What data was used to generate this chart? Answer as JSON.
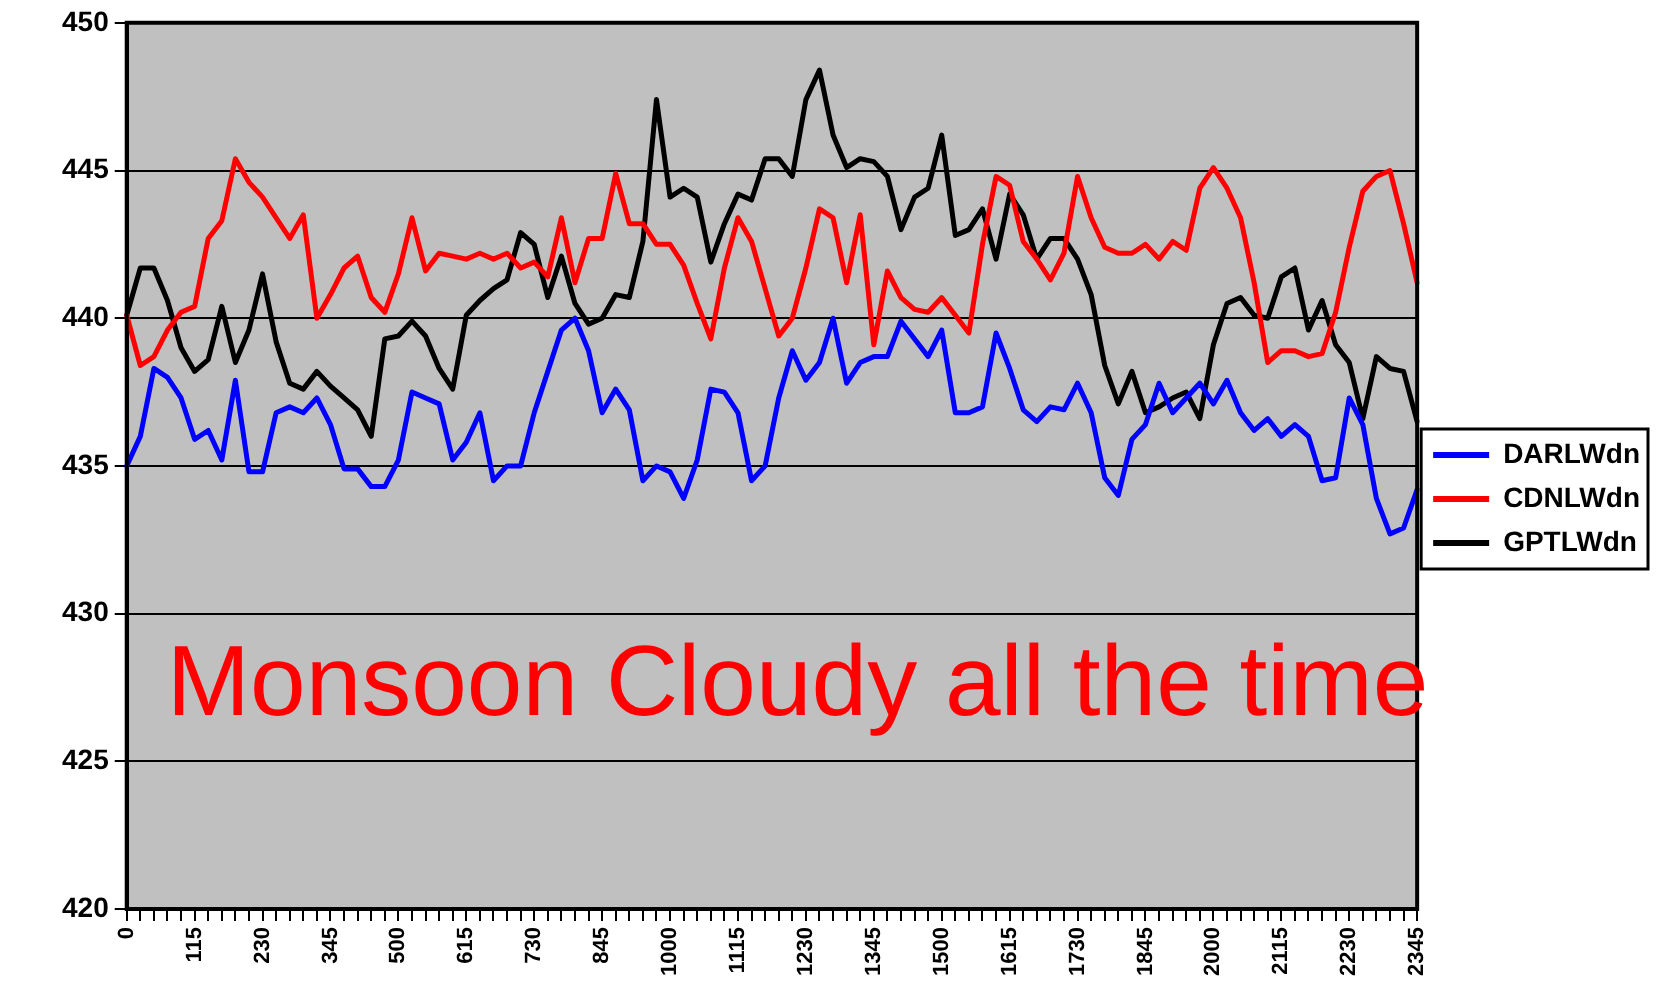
{
  "chart_data": {
    "type": "line",
    "categories": [
      "0",
      null,
      null,
      null,
      null,
      "115",
      null,
      null,
      null,
      null,
      "230",
      null,
      null,
      null,
      null,
      "345",
      null,
      null,
      null,
      null,
      "500",
      null,
      null,
      null,
      null,
      "615",
      null,
      null,
      null,
      null,
      "730",
      null,
      null,
      null,
      null,
      "845",
      null,
      null,
      null,
      null,
      "1000",
      null,
      null,
      null,
      null,
      "1115",
      null,
      null,
      null,
      null,
      "1230",
      null,
      null,
      null,
      null,
      "1345",
      null,
      null,
      null,
      null,
      "1500",
      null,
      null,
      null,
      null,
      "1615",
      null,
      null,
      null,
      null,
      "1730",
      null,
      null,
      null,
      null,
      "1845",
      null,
      null,
      null,
      null,
      "2000",
      null,
      null,
      null,
      null,
      "2115",
      null,
      null,
      null,
      null,
      "2230",
      null,
      null,
      null,
      null,
      "2345"
    ],
    "series": [
      {
        "name": "DARLWdn",
        "color": "#0000ff",
        "values": [
          435.0,
          436.0,
          438.3,
          438.0,
          437.3,
          435.9,
          436.2,
          435.2,
          437.9,
          434.8,
          434.8,
          436.8,
          437.0,
          436.8,
          437.3,
          436.4,
          434.9,
          434.9,
          434.3,
          434.3,
          435.2,
          437.5,
          437.3,
          437.1,
          435.2,
          435.8,
          436.8,
          434.5,
          435.0,
          435.0,
          436.8,
          438.2,
          439.6,
          440.0,
          438.9,
          436.8,
          437.6,
          436.9,
          434.5,
          435.0,
          434.8,
          433.9,
          435.2,
          437.6,
          437.5,
          436.8,
          434.5,
          435.0,
          437.3,
          438.9,
          437.9,
          438.5,
          440.0,
          437.8,
          438.5,
          438.7,
          438.7,
          439.9,
          439.3,
          438.7,
          439.6,
          436.8,
          436.8,
          437.0,
          439.5,
          438.3,
          436.9,
          436.5,
          437.0,
          436.9,
          437.8,
          436.8,
          434.6,
          434.0,
          435.9,
          436.4,
          437.8,
          436.8,
          437.3,
          437.8,
          437.1,
          437.9,
          436.8,
          436.2,
          436.6,
          436.0,
          436.4,
          436.0,
          434.5,
          434.6,
          437.3,
          436.4,
          433.9,
          432.7,
          432.9,
          434.2
        ]
      },
      {
        "name": "CDNLWdn",
        "color": "#ff0000",
        "values": [
          440.1,
          438.4,
          438.7,
          439.6,
          440.2,
          440.4,
          442.7,
          443.3,
          445.4,
          444.6,
          444.1,
          443.4,
          442.7,
          443.5,
          440.0,
          440.8,
          441.7,
          442.1,
          440.7,
          440.2,
          441.5,
          443.4,
          441.6,
          442.2,
          442.1,
          442.0,
          442.2,
          442.0,
          442.2,
          441.7,
          441.9,
          441.4,
          443.4,
          441.2,
          442.7,
          442.7,
          444.9,
          443.2,
          443.2,
          442.5,
          442.5,
          441.8,
          440.5,
          439.3,
          441.7,
          443.4,
          442.6,
          441.0,
          439.4,
          440.0,
          441.7,
          443.7,
          443.4,
          441.2,
          443.5,
          439.1,
          441.6,
          440.7,
          440.3,
          440.2,
          440.7,
          440.1,
          439.5,
          442.5,
          444.8,
          444.5,
          442.6,
          442.0,
          441.3,
          442.2,
          444.8,
          443.4,
          442.4,
          442.2,
          442.2,
          442.5,
          442.0,
          442.6,
          442.3,
          444.4,
          445.1,
          444.4,
          443.4,
          441.2,
          438.5,
          438.9,
          438.9,
          438.7,
          438.8,
          440.2,
          442.4,
          444.3,
          444.8,
          445.0,
          443.2,
          441.2
        ]
      },
      {
        "name": "GPTLWdn",
        "color": "#000000",
        "values": [
          440.1,
          441.7,
          441.7,
          440.6,
          439.0,
          438.2,
          438.6,
          440.4,
          438.5,
          439.6,
          441.5,
          439.2,
          437.8,
          437.6,
          438.2,
          437.7,
          437.3,
          436.9,
          436.0,
          439.3,
          439.4,
          439.9,
          439.4,
          438.3,
          437.6,
          440.1,
          440.6,
          441.0,
          441.3,
          442.9,
          442.5,
          440.7,
          442.1,
          440.5,
          439.8,
          440.0,
          440.8,
          440.7,
          442.6,
          447.4,
          444.1,
          444.4,
          444.1,
          441.9,
          443.2,
          444.2,
          444.0,
          445.4,
          445.4,
          444.8,
          447.4,
          448.4,
          446.2,
          445.1,
          445.4,
          445.3,
          444.8,
          443.0,
          444.1,
          444.4,
          446.2,
          442.8,
          443.0,
          443.7,
          442.0,
          444.2,
          443.5,
          442.0,
          442.7,
          442.7,
          442.0,
          440.8,
          438.4,
          437.1,
          438.2,
          436.8,
          437.0,
          437.3,
          437.5,
          436.6,
          439.1,
          440.5,
          440.7,
          440.1,
          440.0,
          441.4,
          441.7,
          439.6,
          440.6,
          439.1,
          438.5,
          436.6,
          438.7,
          438.3,
          438.2,
          436.5
        ]
      }
    ],
    "ylim": [
      420,
      450
    ],
    "yticks": [
      420,
      425,
      430,
      435,
      440,
      445,
      450
    ],
    "grid": "y",
    "legend": "right",
    "marker": "none",
    "line_style": "solid",
    "annotations": [
      "Monsoon Cloudy all the time"
    ]
  }
}
